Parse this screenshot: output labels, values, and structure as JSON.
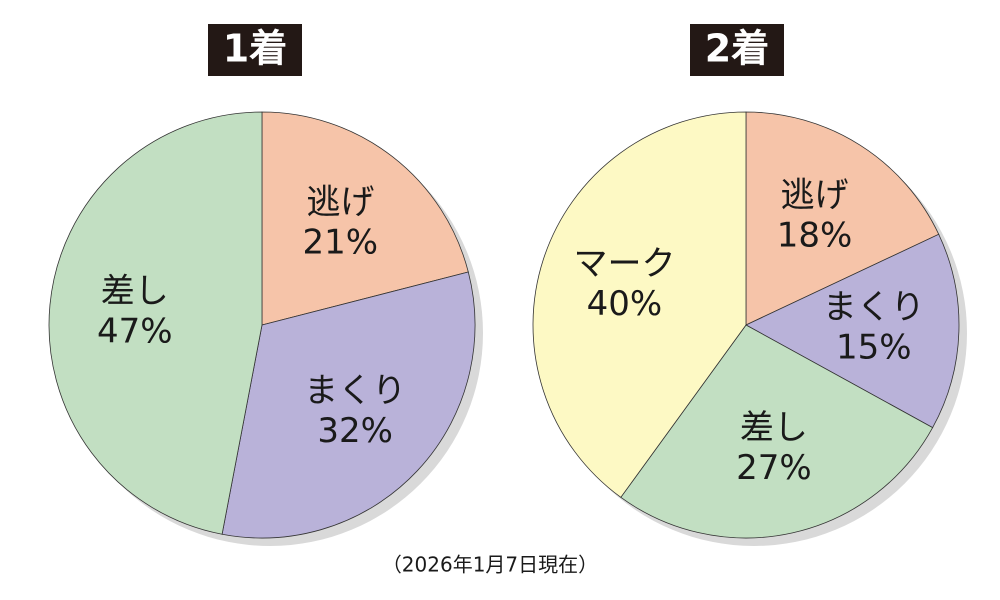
{
  "chart_data": [
    {
      "type": "pie",
      "title": "1着",
      "categories": [
        "逃げ",
        "まくり",
        "差し"
      ],
      "values": [
        21,
        32,
        47
      ],
      "value_labels": [
        "21%",
        "32%",
        "47%"
      ],
      "colors": [
        "#f6c4a9",
        "#b9b2d9",
        "#c2dfc2"
      ]
    },
    {
      "type": "pie",
      "title": "2着",
      "categories": [
        "逃げ",
        "まくり",
        "差し",
        "マーク"
      ],
      "values": [
        18,
        15,
        27,
        40
      ],
      "value_labels": [
        "18%",
        "15%",
        "27%",
        "40%"
      ],
      "colors": [
        "#f6c4a9",
        "#b9b2d9",
        "#c2dfc2",
        "#fdf9c4"
      ]
    }
  ],
  "footnote": "（2026年1月7日現在）"
}
